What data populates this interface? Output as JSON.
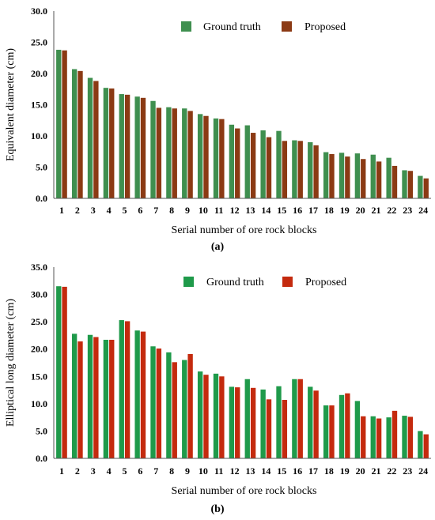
{
  "colors": {
    "ground_truth_a": "#3f8f4f",
    "proposed_a": "#8b3a14",
    "ground_truth_b": "#1f9a4a",
    "proposed_b": "#c42a0e",
    "axis": "#555555"
  },
  "chart_data": [
    {
      "type": "bar",
      "panel_label": "(a)",
      "xlabel": "Serial number of ore rock blocks",
      "ylabel": "Equivalent diameter (cm)",
      "ylim": [
        0,
        30
      ],
      "yticks": [
        "0.0",
        "5.0",
        "10.0",
        "15.0",
        "20.0",
        "25.0",
        "30.0"
      ],
      "yticks_values": [
        0,
        5,
        10,
        15,
        20,
        25,
        30
      ],
      "legend_position": "top-right",
      "grid": false,
      "categories": [
        "1",
        "2",
        "3",
        "4",
        "5",
        "6",
        "7",
        "8",
        "9",
        "10",
        "11",
        "12",
        "13",
        "14",
        "15",
        "16",
        "17",
        "18",
        "19",
        "20",
        "21",
        "22",
        "23",
        "24"
      ],
      "series": [
        {
          "name": "Ground truth",
          "values": [
            23.8,
            20.7,
            19.3,
            17.7,
            16.7,
            16.3,
            15.6,
            14.6,
            14.4,
            13.5,
            12.8,
            11.8,
            11.7,
            10.9,
            10.8,
            9.3,
            9.0,
            7.4,
            7.3,
            7.2,
            7.0,
            6.5,
            4.5,
            3.6
          ]
        },
        {
          "name": "Proposed",
          "values": [
            23.7,
            20.4,
            18.8,
            17.6,
            16.6,
            16.1,
            14.5,
            14.4,
            14.0,
            13.2,
            12.7,
            11.2,
            10.5,
            9.8,
            9.2,
            9.2,
            8.5,
            7.1,
            6.7,
            6.3,
            5.9,
            5.2,
            4.4,
            3.2
          ]
        }
      ]
    },
    {
      "type": "bar",
      "panel_label": "(b)",
      "xlabel": "Serial number of ore rock blocks",
      "ylabel": "Elliptical long diameter (cm)",
      "ylim": [
        0,
        35
      ],
      "yticks": [
        "0.0",
        "5.0",
        "10.0",
        "15.0",
        "20.0",
        "25.0",
        "30.0",
        "35.0"
      ],
      "yticks_values": [
        0,
        5,
        10,
        15,
        20,
        25,
        30,
        35
      ],
      "legend_position": "top-right",
      "grid": false,
      "categories": [
        "1",
        "2",
        "3",
        "4",
        "5",
        "6",
        "7",
        "8",
        "9",
        "10",
        "11",
        "12",
        "13",
        "14",
        "15",
        "16",
        "17",
        "18",
        "19",
        "20",
        "21",
        "22",
        "23",
        "24"
      ],
      "series": [
        {
          "name": "Ground truth",
          "values": [
            31.5,
            22.8,
            22.6,
            21.7,
            25.3,
            23.4,
            20.5,
            19.4,
            18.0,
            15.9,
            15.5,
            13.1,
            14.5,
            12.6,
            13.2,
            14.5,
            13.1,
            9.7,
            11.6,
            10.5,
            7.7,
            7.5,
            7.8,
            5.0
          ]
        },
        {
          "name": "Proposed",
          "values": [
            31.4,
            21.4,
            22.2,
            21.7,
            25.1,
            23.2,
            20.1,
            17.6,
            19.1,
            15.3,
            15.0,
            13.0,
            12.9,
            10.8,
            10.7,
            14.5,
            12.4,
            9.7,
            11.9,
            7.7,
            7.3,
            8.7,
            7.6,
            4.4
          ]
        }
      ]
    }
  ]
}
